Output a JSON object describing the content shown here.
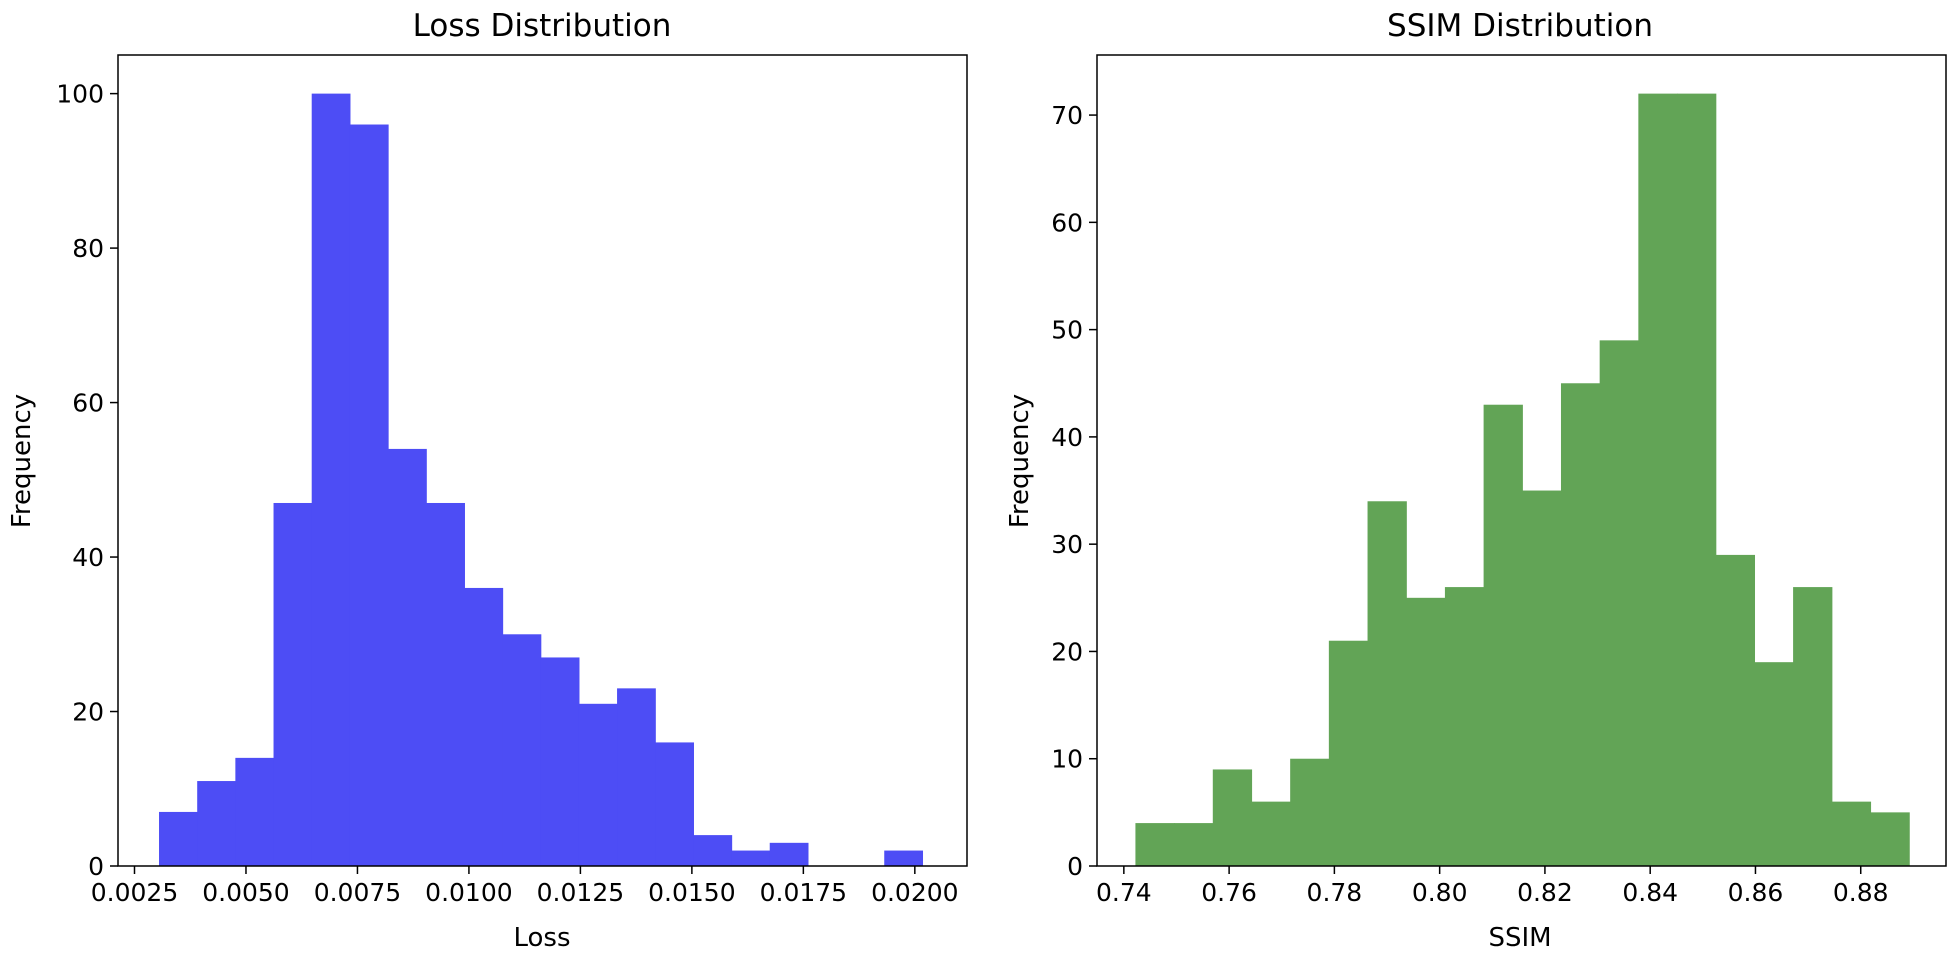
{
  "chart_data": [
    {
      "type": "histogram",
      "title": "Loss Distribution",
      "xlabel": "Loss",
      "ylabel": "Frequency",
      "color": "#4d4df5",
      "xlim": [
        0.00213,
        0.02117
      ],
      "ylim": [
        0,
        105
      ],
      "bin_edges": [
        0.00305,
        0.003906,
        0.004762,
        0.005618,
        0.006474,
        0.00733,
        0.008186,
        0.009042,
        0.009898,
        0.010754,
        0.01161,
        0.012466,
        0.013322,
        0.014178,
        0.015034,
        0.01589,
        0.016746,
        0.017602,
        0.018458,
        0.019314,
        0.02017
      ],
      "counts": [
        7,
        11,
        14,
        47,
        100,
        96,
        54,
        47,
        36,
        30,
        27,
        21,
        23,
        16,
        4,
        2,
        3,
        0,
        0,
        2
      ],
      "xticks": [
        0.0025,
        0.005,
        0.0075,
        0.01,
        0.0125,
        0.015,
        0.0175,
        0.02
      ],
      "xtick_labels": [
        "0.0025",
        "0.0050",
        "0.0075",
        "0.0100",
        "0.0125",
        "0.0150",
        "0.0175",
        "0.0200"
      ],
      "yticks": [
        0,
        20,
        40,
        60,
        80,
        100
      ],
      "ytick_labels": [
        "0",
        "20",
        "40",
        "60",
        "80",
        "100"
      ]
    },
    {
      "type": "histogram",
      "title": "SSIM Distribution",
      "xlabel": "SSIM",
      "ylabel": "Frequency",
      "color": "#62a456",
      "xlim": [
        0.7349,
        0.8962
      ],
      "ylim": [
        0,
        75.6
      ],
      "bin_edges": [
        0.7422,
        0.74955,
        0.7569,
        0.76425,
        0.7716,
        0.77895,
        0.7863,
        0.79365,
        0.801,
        0.80835,
        0.8157,
        0.82305,
        0.8304,
        0.83775,
        0.8451,
        0.85245,
        0.8598,
        0.86715,
        0.8745,
        0.88185,
        0.8892
      ],
      "counts": [
        4,
        4,
        9,
        6,
        10,
        21,
        34,
        25,
        26,
        43,
        35,
        45,
        49,
        72,
        72,
        29,
        19,
        26,
        6,
        5
      ],
      "xticks": [
        0.74,
        0.76,
        0.78,
        0.8,
        0.82,
        0.84,
        0.86,
        0.88
      ],
      "xtick_labels": [
        "0.74",
        "0.76",
        "0.78",
        "0.80",
        "0.82",
        "0.84",
        "0.86",
        "0.88"
      ],
      "yticks": [
        0,
        10,
        20,
        30,
        40,
        50,
        60,
        70
      ],
      "ytick_labels": [
        "0",
        "10",
        "20",
        "30",
        "40",
        "50",
        "60",
        "70"
      ]
    }
  ]
}
